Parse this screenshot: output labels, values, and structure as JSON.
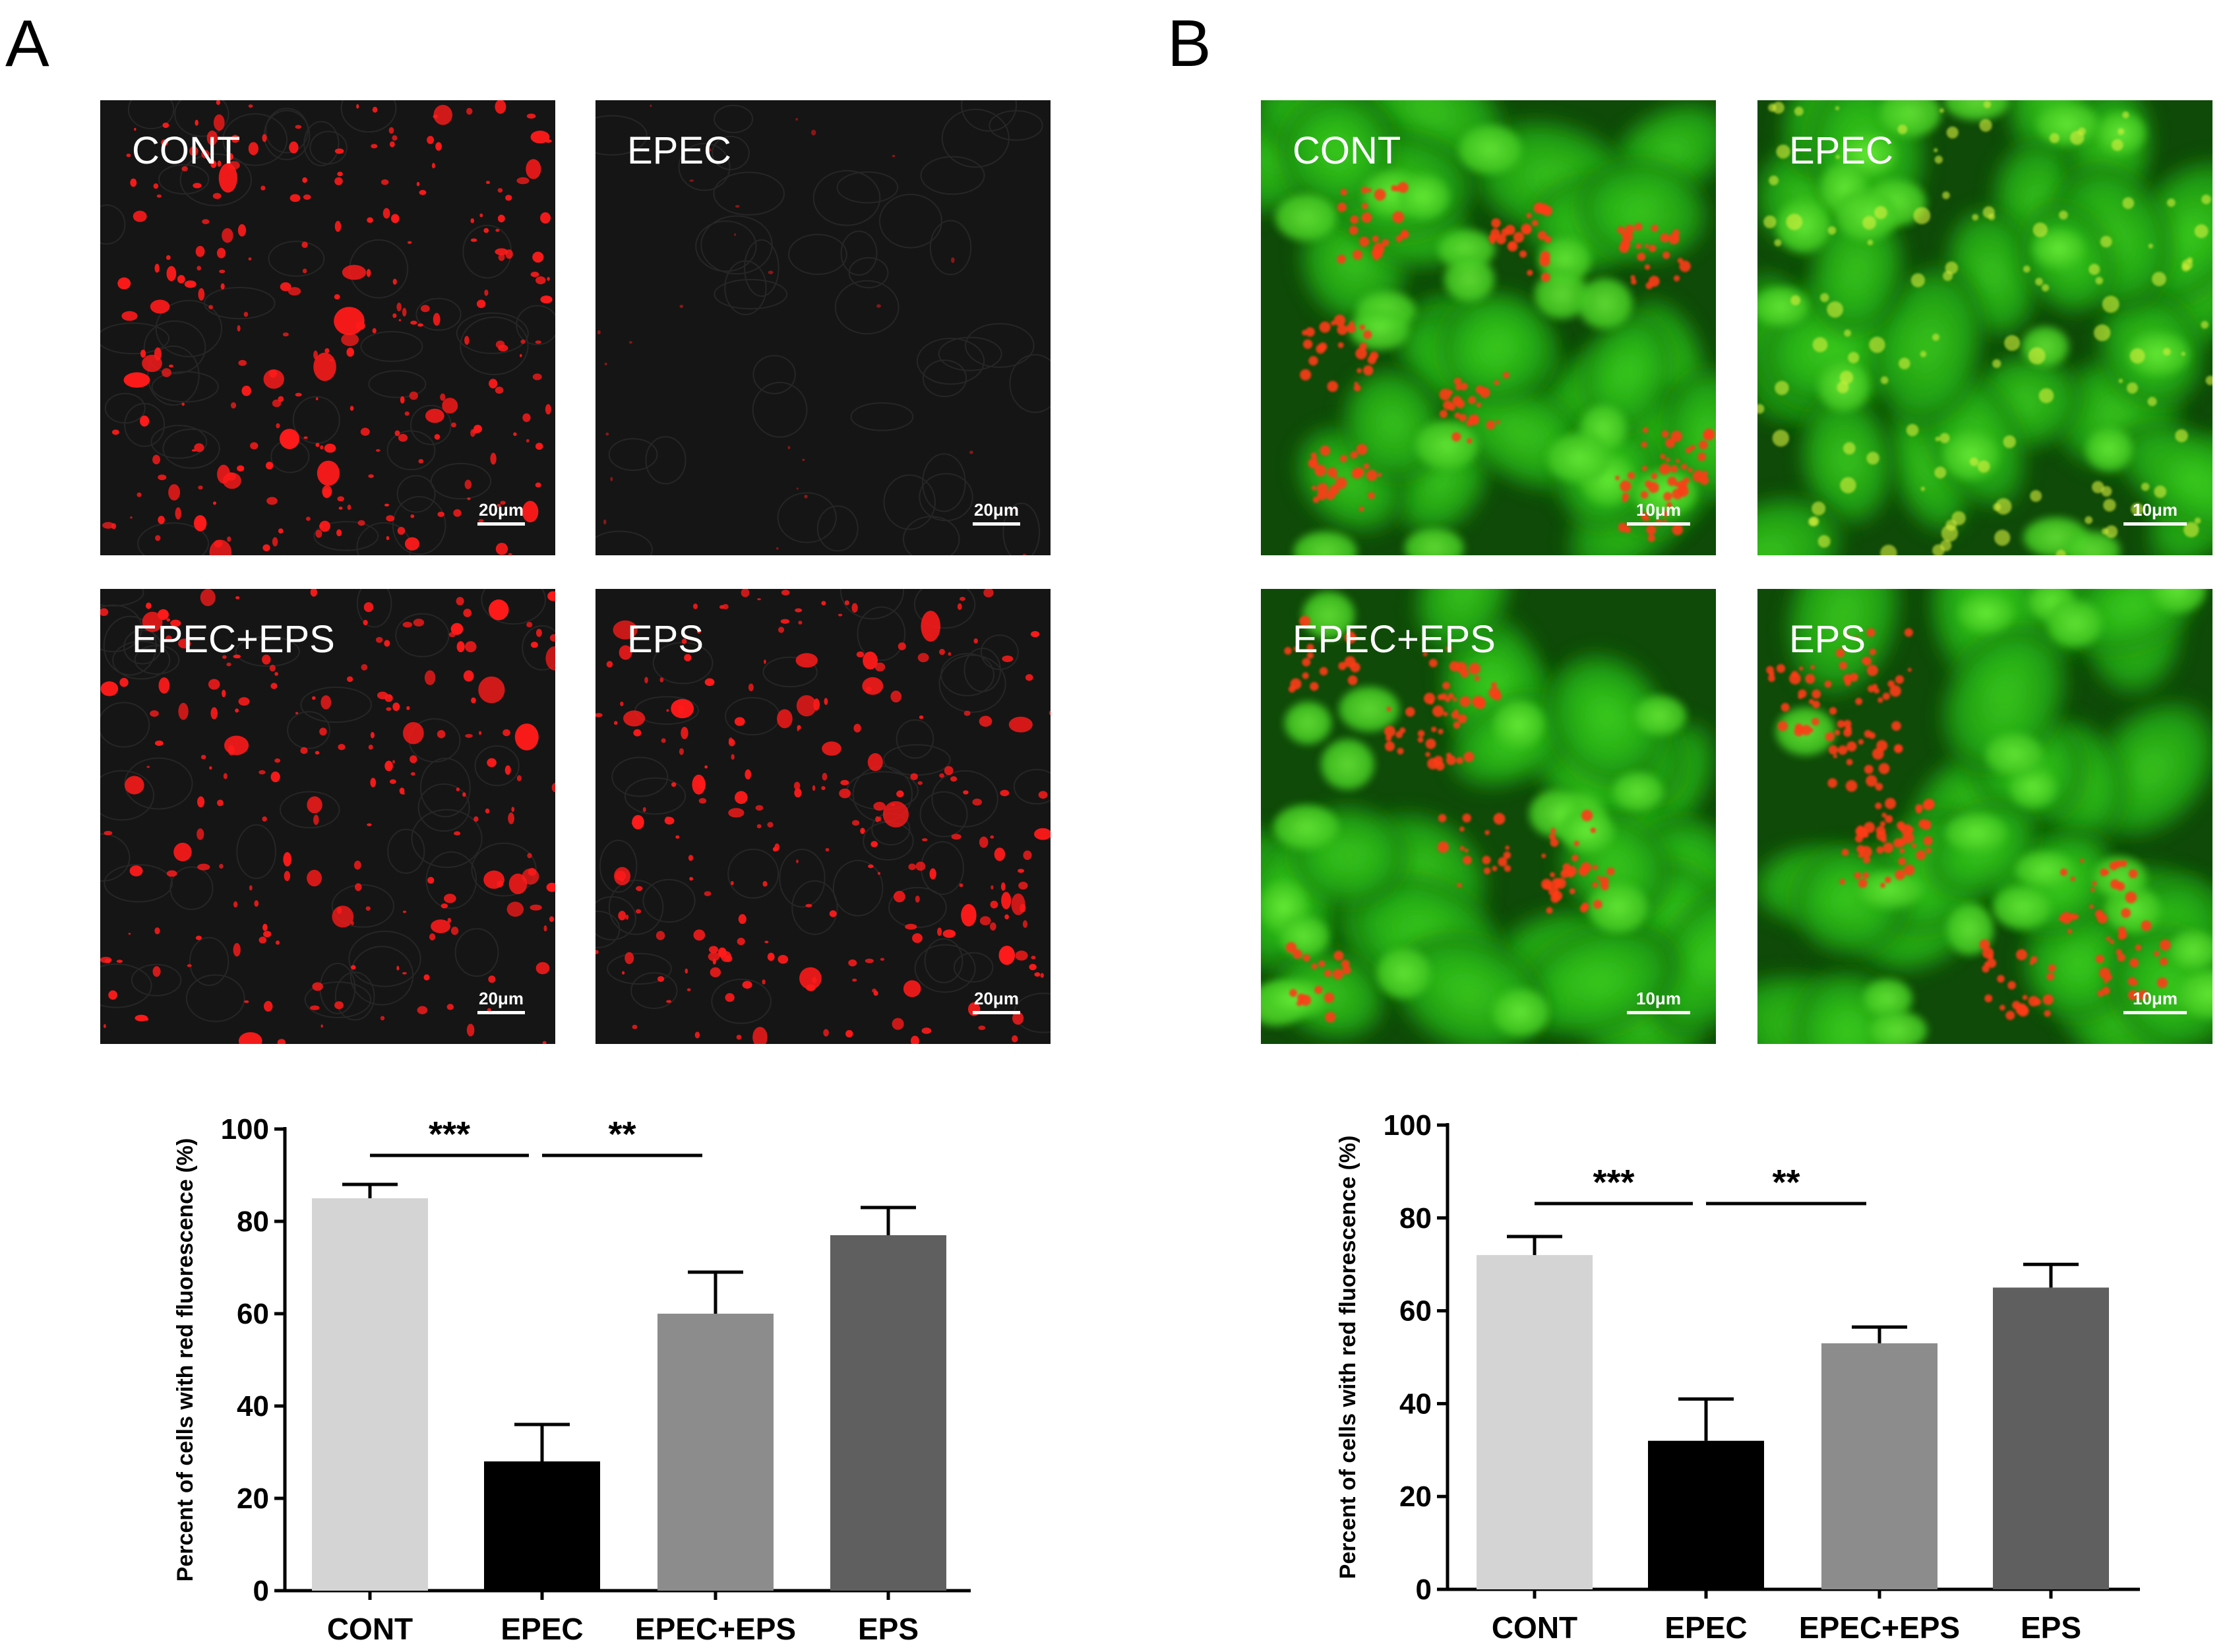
{
  "figure": {
    "panels": [
      {
        "label": "A",
        "images": [
          {
            "label": "CONT",
            "scalebar": "20μm",
            "style": "red",
            "density": 1.0
          },
          {
            "label": "EPEC",
            "scalebar": "20μm",
            "style": "red",
            "density": 0.06
          },
          {
            "label": "EPEC+EPS",
            "scalebar": "20μm",
            "style": "red",
            "density": 0.75
          },
          {
            "label": "EPS",
            "scalebar": "20μm",
            "style": "red",
            "density": 0.9
          }
        ]
      },
      {
        "label": "B",
        "images": [
          {
            "label": "CONT",
            "scalebar": "10μm",
            "style": "green",
            "density": 0.9
          },
          {
            "label": "EPEC",
            "scalebar": "10μm",
            "style": "green",
            "density": 0.0
          },
          {
            "label": "EPEC+EPS",
            "scalebar": "10μm",
            "style": "green",
            "density": 0.6
          },
          {
            "label": "EPS",
            "scalebar": "10μm",
            "style": "green",
            "density": 0.85
          }
        ]
      }
    ]
  },
  "chart_data": [
    {
      "type": "bar",
      "panel": "A",
      "categories": [
        "CONT",
        "EPEC",
        "EPEC+EPS",
        "EPS"
      ],
      "values": [
        85,
        28,
        60,
        77
      ],
      "errors": [
        3,
        8,
        9,
        6
      ],
      "colors": [
        "#d4d4d4",
        "#000000",
        "#8c8c8c",
        "#5f5f5f"
      ],
      "ylabel": "Percent of cells with red fluorescence (%)",
      "ylim": [
        0,
        100
      ],
      "yticks": [
        0,
        20,
        40,
        60,
        80,
        100
      ],
      "significance": [
        {
          "from": "CONT",
          "to": "EPEC",
          "label": "***"
        },
        {
          "from": "EPEC",
          "to": "EPEC+EPS",
          "label": "**"
        }
      ]
    },
    {
      "type": "bar",
      "panel": "B",
      "categories": [
        "CONT",
        "EPEC",
        "EPEC+EPS",
        "EPS"
      ],
      "values": [
        72,
        32,
        53,
        65
      ],
      "errors": [
        4,
        9,
        3.5,
        5
      ],
      "colors": [
        "#d4d4d4",
        "#000000",
        "#8c8c8c",
        "#5f5f5f"
      ],
      "ylabel": "Percent of cells with red fluorescence (%)",
      "ylim": [
        0,
        100
      ],
      "yticks": [
        0,
        20,
        40,
        60,
        80,
        100
      ],
      "significance": [
        {
          "from": "CONT",
          "to": "EPEC",
          "label": "***"
        },
        {
          "from": "EPEC",
          "to": "EPEC+EPS",
          "label": "**"
        }
      ]
    }
  ]
}
